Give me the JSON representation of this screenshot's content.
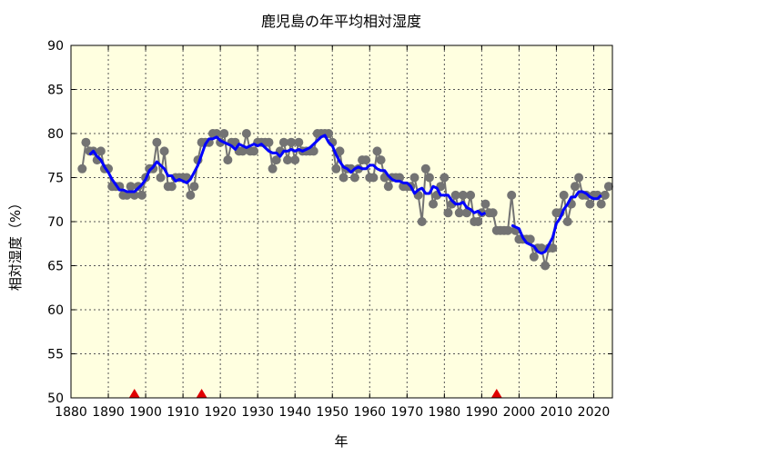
{
  "chart_data": {
    "type": "line",
    "title": "鹿児島の年平均相対湿度",
    "xlabel": "年",
    "ylabel": "相対湿度（%）",
    "xlim": [
      1880,
      2025
    ],
    "ylim": [
      50,
      90
    ],
    "xticks": [
      1880,
      1890,
      1900,
      1910,
      1920,
      1930,
      1940,
      1950,
      1960,
      1970,
      1980,
      1990,
      2000,
      2010,
      2020
    ],
    "yticks": [
      50,
      55,
      60,
      65,
      70,
      75,
      80,
      85,
      90
    ],
    "grid": true,
    "colors": {
      "background": "#ffffe0",
      "points": "#737373",
      "moving_average": "#0000ff",
      "markers": "#e00000"
    },
    "x_start": 1883,
    "values": [
      76,
      79,
      78,
      78,
      77,
      78,
      76,
      76,
      74,
      74,
      74,
      73,
      73,
      74,
      73,
      74,
      73,
      75,
      76,
      76,
      79,
      75,
      78,
      74,
      74,
      75,
      75,
      75,
      75,
      73,
      74,
      77,
      79,
      79,
      79,
      80,
      80,
      79,
      80,
      77,
      79,
      79,
      78,
      78,
      80,
      78,
      78,
      79,
      79,
      79,
      79,
      76,
      77,
      78,
      79,
      77,
      79,
      77,
      79,
      78,
      78,
      78,
      78,
      80,
      80,
      80,
      80,
      79,
      76,
      78,
      75,
      76,
      76,
      75,
      76,
      77,
      77,
      75,
      75,
      78,
      77,
      75,
      74,
      75,
      75,
      75,
      74,
      74,
      74,
      75,
      73,
      70,
      76,
      75,
      72,
      73,
      74,
      75,
      71,
      72,
      73,
      71,
      73,
      71,
      73,
      70,
      70,
      71,
      72,
      71,
      71,
      69,
      69,
      69,
      69,
      73,
      69,
      68,
      68,
      68,
      68,
      66,
      67,
      67,
      65,
      67,
      67,
      71,
      71,
      73,
      70,
      72,
      74,
      75,
      73,
      73,
      72,
      73,
      73,
      72,
      73,
      74
    ],
    "moving_average_window": 5,
    "moving_average_segments": [
      [
        1883,
        1993
      ],
      [
        1996,
        2024
      ]
    ],
    "station_change_years": [
      1897,
      1915,
      1994
    ]
  }
}
